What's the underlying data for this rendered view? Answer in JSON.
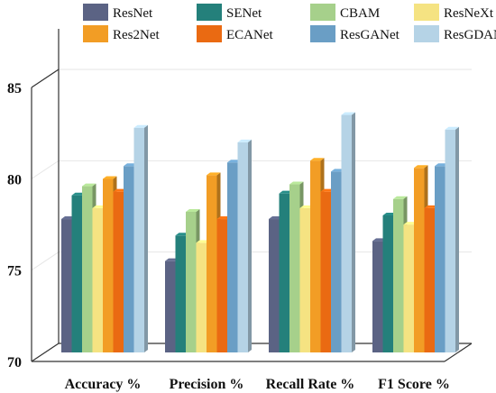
{
  "chart_data": {
    "type": "bar",
    "title": "",
    "xlabel": "",
    "ylabel": "",
    "categories": [
      "Accuracy %",
      "Precision %",
      "Recall Rate %",
      "F1 Score %"
    ],
    "ylim": [
      70,
      85
    ],
    "yticks": [
      "70",
      "75",
      "80",
      "85"
    ],
    "grid": true,
    "legend_position": "top",
    "series": [
      {
        "name": "ResNet",
        "color": "#5b6384",
        "values": [
          77.3,
          75.0,
          77.3,
          76.1
        ]
      },
      {
        "name": "SENet",
        "color": "#24807b",
        "values": [
          78.6,
          76.4,
          78.7,
          77.5
        ]
      },
      {
        "name": "CBAM",
        "color": "#a6d08b",
        "values": [
          79.1,
          77.7,
          79.2,
          78.4
        ]
      },
      {
        "name": "ResNeXt",
        "color": "#f5e382",
        "values": [
          77.9,
          76.0,
          77.9,
          77.0
        ]
      },
      {
        "name": "Res2Net",
        "color": "#f29d25",
        "values": [
          79.5,
          79.7,
          80.5,
          80.1
        ]
      },
      {
        "name": "ECANet",
        "color": "#ea6a12",
        "values": [
          78.8,
          77.3,
          78.8,
          77.9
        ]
      },
      {
        "name": "ResGANet",
        "color": "#6a9ec5",
        "values": [
          80.2,
          80.4,
          79.9,
          80.2
        ]
      },
      {
        "name": "ResGDANet",
        "color": "#b5d3e6",
        "values": [
          82.3,
          81.5,
          83.0,
          82.2
        ]
      }
    ]
  }
}
